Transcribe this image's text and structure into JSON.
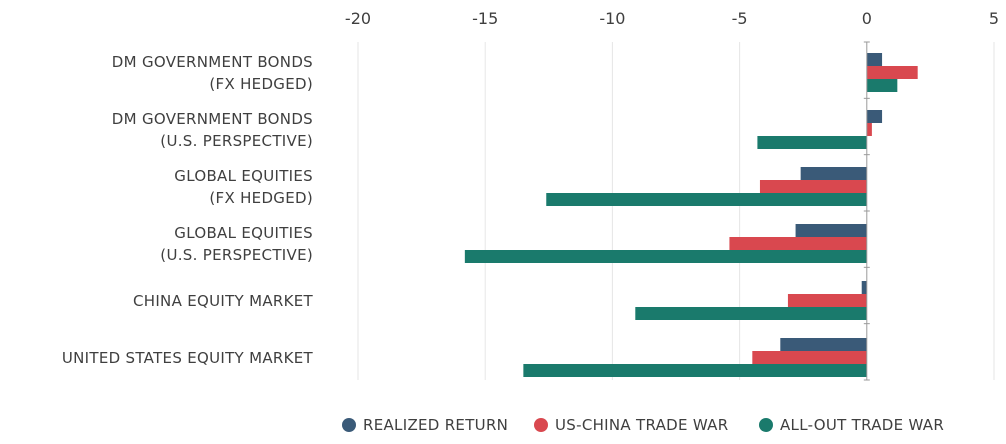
{
  "chart_data": {
    "type": "bar",
    "orientation": "horizontal",
    "categories": [
      [
        "DM GOVERNMENT BONDS",
        "(FX HEDGED)"
      ],
      [
        "DM GOVERNMENT BONDS",
        "(U.S. PERSPECTIVE)"
      ],
      [
        "GLOBAL EQUITIES",
        "(FX HEDGED)"
      ],
      [
        "GLOBAL EQUITIES",
        "(U.S. PERSPECTIVE)"
      ],
      [
        "CHINA EQUITY MARKET"
      ],
      [
        "UNITED STATES EQUITY MARKET"
      ]
    ],
    "series": [
      {
        "name": "REALIZED RETURN",
        "color": "#3a5a78",
        "values": [
          0.6,
          0.6,
          -2.6,
          -2.8,
          -0.2,
          -3.4
        ]
      },
      {
        "name": "US-CHINA TRADE WAR",
        "color": "#d9484f",
        "values": [
          2.0,
          0.2,
          -4.2,
          -5.4,
          -3.1,
          -4.5
        ]
      },
      {
        "name": "ALL-OUT TRADE WAR",
        "color": "#1a7a6c",
        "values": [
          1.2,
          -4.3,
          -12.6,
          -15.8,
          -9.1,
          -13.5
        ]
      }
    ],
    "xlim": [
      -20,
      5
    ],
    "xticks": [
      "-20",
      "-15",
      "-10",
      "-5",
      "0",
      "5"
    ],
    "xlabel": "",
    "ylabel": "",
    "title": "",
    "grid": true,
    "legend_position": "bottom"
  }
}
